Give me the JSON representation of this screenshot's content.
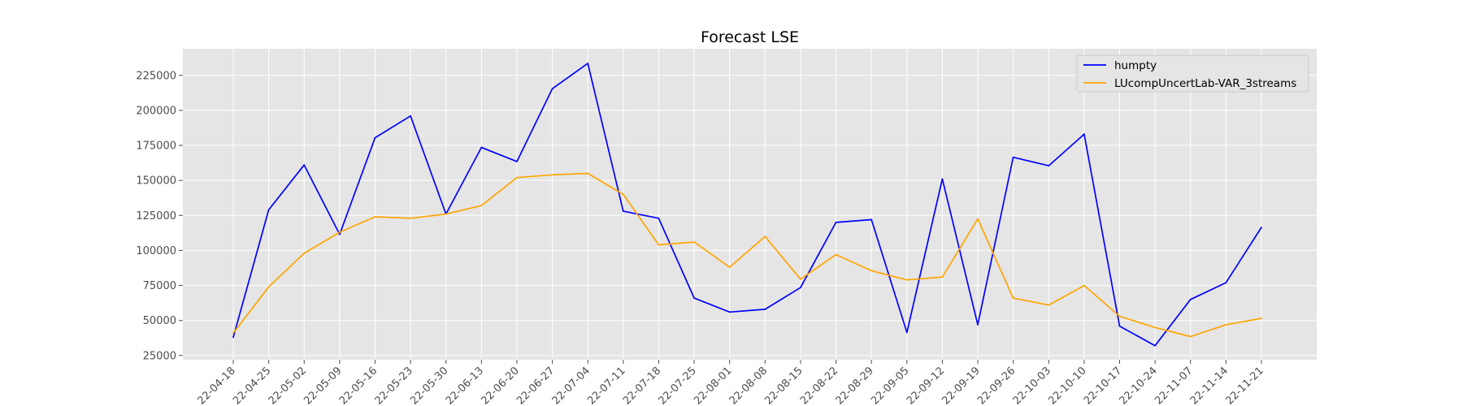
{
  "chart_data": {
    "type": "line",
    "title": "Forecast LSE",
    "xlabel": "",
    "ylabel": "",
    "categories": [
      "2022-04-18",
      "2022-04-25",
      "2022-05-02",
      "2022-05-09",
      "2022-05-16",
      "2022-05-23",
      "2022-05-30",
      "2022-06-13",
      "2022-06-20",
      "2022-06-27",
      "2022-07-04",
      "2022-07-11",
      "2022-07-18",
      "2022-07-25",
      "2022-08-01",
      "2022-08-08",
      "2022-08-15",
      "2022-08-22",
      "2022-08-29",
      "2022-09-05",
      "2022-09-12",
      "2022-09-19",
      "2022-09-26",
      "2022-10-03",
      "2022-10-10",
      "2022-10-17",
      "2022-10-24",
      "2022-11-07",
      "2022-11-14",
      "2022-11-21"
    ],
    "tick_labels": [
      "22-04-18",
      "22-04-25",
      "22-05-02",
      "22-05-09",
      "22-05-16",
      "22-05-23",
      "22-05-30",
      "22-06-13",
      "22-06-20",
      "22-06-27",
      "22-07-04",
      "22-07-11",
      "22-07-18",
      "22-07-25",
      "22-08-01",
      "22-08-08",
      "22-08-15",
      "22-08-22",
      "22-08-29",
      "22-09-05",
      "22-09-12",
      "22-09-19",
      "22-09-26",
      "22-10-03",
      "22-10-10",
      "22-10-17",
      "22-10-24",
      "22-11-07",
      "22-11-14",
      "22-11-21"
    ],
    "yticks": [
      25000,
      50000,
      75000,
      100000,
      125000,
      150000,
      175000,
      200000,
      225000
    ],
    "ylim": [
      22000,
      244000
    ],
    "grid": true,
    "legend_position": "top-right",
    "series": [
      {
        "name": "humpty",
        "color": "#0000ff",
        "values": [
          38000,
          129000,
          161000,
          111500,
          180500,
          196000,
          126000,
          173500,
          163500,
          215500,
          233500,
          128000,
          123000,
          66000,
          56000,
          58000,
          73500,
          120000,
          122000,
          41500,
          151000,
          47000,
          166500,
          160500,
          183000,
          46000,
          32000,
          65000,
          77000,
          116500
        ]
      },
      {
        "name": "LUcompUncertLab-VAR_3streams",
        "color": "#ffa500",
        "values": [
          41000,
          74000,
          98000,
          113000,
          124000,
          123000,
          126000,
          132000,
          152000,
          154000,
          155000,
          140000,
          104000,
          106000,
          88000,
          110000,
          79500,
          97000,
          85500,
          79000,
          81000,
          122500,
          66000,
          61000,
          75000,
          53000,
          45000,
          38500,
          47000,
          51500
        ]
      }
    ]
  }
}
